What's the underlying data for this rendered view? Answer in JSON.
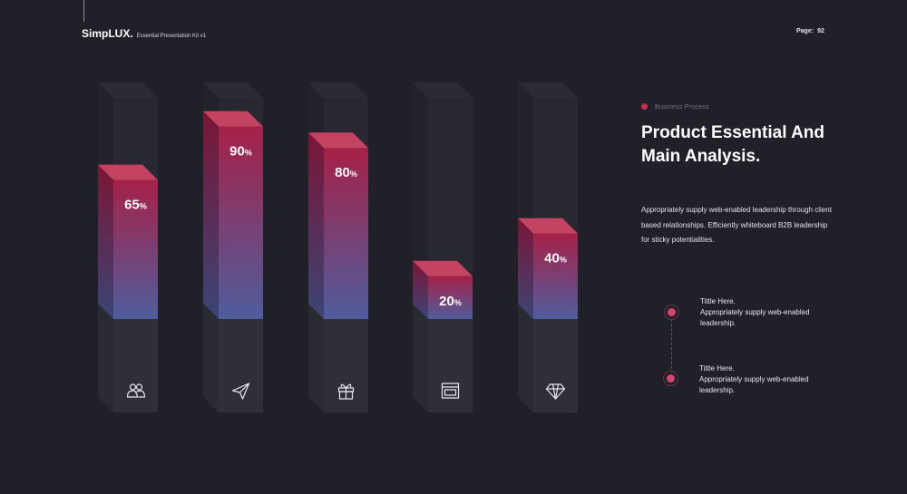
{
  "header": {
    "brand": "SimpLUX.",
    "subtitle": "Essential Presentation Kit v1",
    "page_label": "Page:",
    "page_number": "92"
  },
  "colors": {
    "background": "#1f2028",
    "accent": "#c8324f",
    "bar_top": "#a62148",
    "bar_bottom": "#4f5d9c",
    "column_light": "#2c2d36",
    "column_dark": "#25262e"
  },
  "chart_data": {
    "type": "bar",
    "categories": [
      "",
      "",
      "",
      "",
      ""
    ],
    "values": [
      65,
      90,
      80,
      20,
      40
    ],
    "labels": [
      "65",
      "90",
      "80",
      "20",
      "40"
    ],
    "unit": "%",
    "ylim": [
      0,
      100
    ],
    "icons": [
      "users-icon",
      "paper-plane-icon",
      "gift-icon",
      "browser-icon",
      "diamond-icon"
    ],
    "grid": false,
    "legend": "none"
  },
  "panel": {
    "tag": "Business Process",
    "heading_line1": "Product Essential And",
    "heading_line2": "Main Analysis.",
    "description": "Appropriately supply web-enabled leadership through client based relationships. Efficiently whiteboard B2B leadership for sticky potentialities."
  },
  "timeline": [
    {
      "title": "Tittle Here.",
      "text": "Appropriately supply web-enabled leadership."
    },
    {
      "title": "Tittle Here.",
      "text": "Appropriately supply web-enabled leadership."
    }
  ]
}
